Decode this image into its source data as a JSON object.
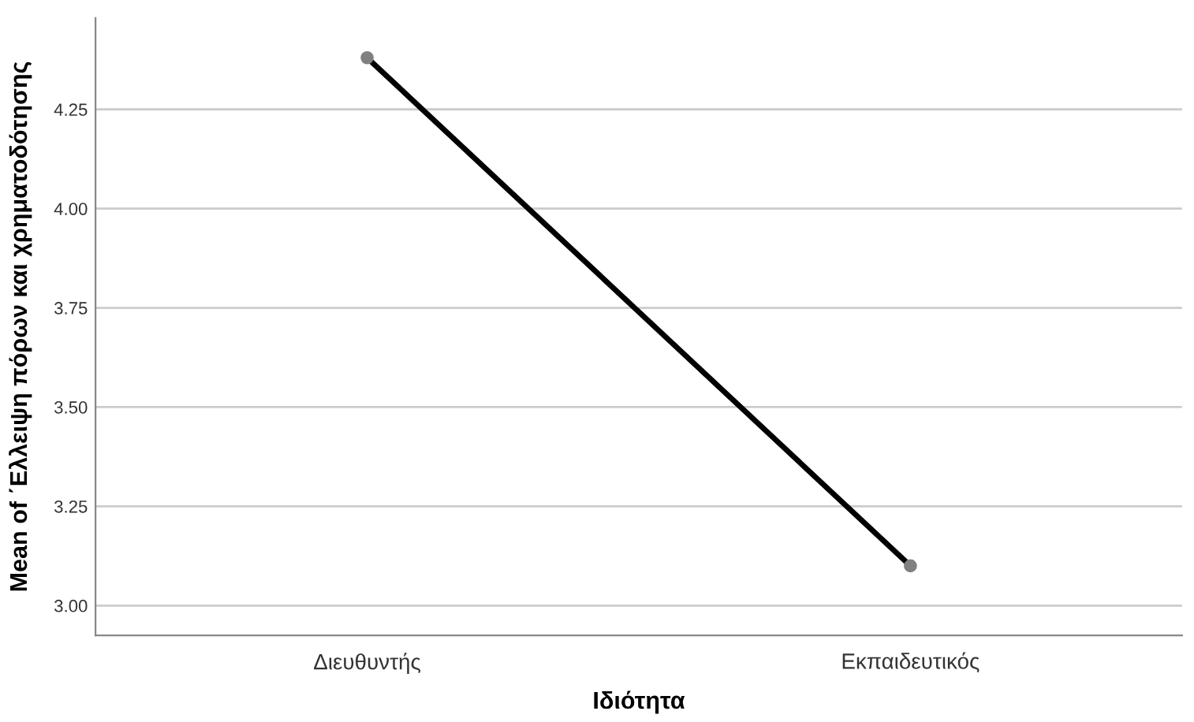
{
  "chart_data": {
    "type": "line",
    "xlabel": "Ιδιότητα",
    "ylabel": "Mean of ΄Ελλειψη πόρων και χρηματοδότησης",
    "categories": [
      "Διευθυντής",
      "Εκπαιδευτικός"
    ],
    "series": [
      {
        "color": "#000000",
        "values": [
          4.38,
          3.1
        ]
      }
    ],
    "marker": "circle",
    "line_style": "solid",
    "ylim": [
      2.925,
      4.48
    ],
    "yticks": [
      {
        "value": 3.0,
        "label": "3.00"
      },
      {
        "value": 3.25,
        "label": "3.25"
      },
      {
        "value": 3.5,
        "label": "3.50"
      },
      {
        "value": 3.75,
        "label": "3.75"
      },
      {
        "value": 4.0,
        "label": "4.00"
      },
      {
        "value": 4.25,
        "label": "4.25"
      }
    ],
    "grid": "y",
    "legend": false
  }
}
